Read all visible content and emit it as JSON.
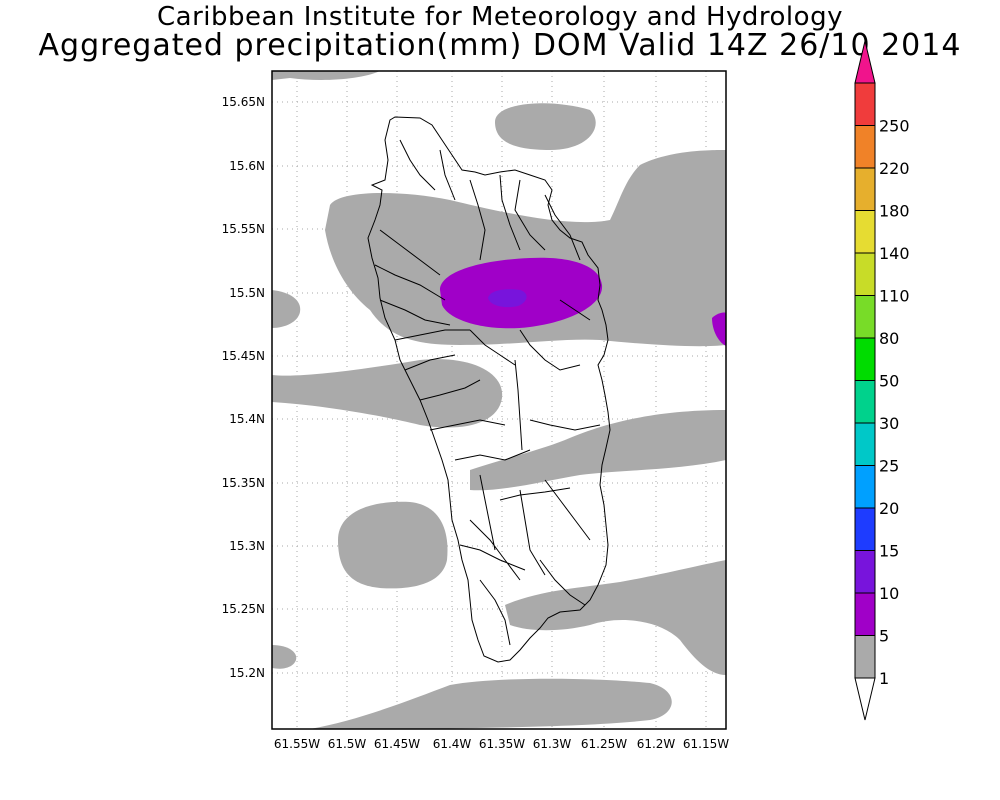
{
  "title": {
    "line1": "Caribbean Institute for Meteorology and Hydrology",
    "line2": "Aggregated precipitation(mm) DOM Valid 14Z 26/10 2014"
  },
  "map": {
    "lat_labels": [
      "15.65N",
      "15.6N",
      "15.55N",
      "15.5N",
      "15.45N",
      "15.4N",
      "15.35N",
      "15.3N",
      "15.25N",
      "15.2N"
    ],
    "lon_labels": [
      "61.55W",
      "61.5W",
      "61.45W",
      "61.4W",
      "61.35W",
      "61.3W",
      "61.25W",
      "61.2W",
      "61.15W"
    ],
    "fill_colors": {
      "light_rain": "#aaaaaa",
      "moderate": "#a000c8",
      "heavy_core": "#7814dc",
      "land_outline": "#000000"
    }
  },
  "colorbar": {
    "levels": [
      "1",
      "5",
      "10",
      "15",
      "20",
      "25",
      "30",
      "50",
      "80",
      "110",
      "140",
      "180",
      "220",
      "250"
    ],
    "colors": [
      "#aaaaaa",
      "#a000c8",
      "#7814dc",
      "#1e3cff",
      "#00a0ff",
      "#00c8c8",
      "#00d28c",
      "#00dc00",
      "#78dc28",
      "#c8dc28",
      "#e6dc32",
      "#e6af2d",
      "#f08228",
      "#f03c3c",
      "#f0148c"
    ]
  }
}
